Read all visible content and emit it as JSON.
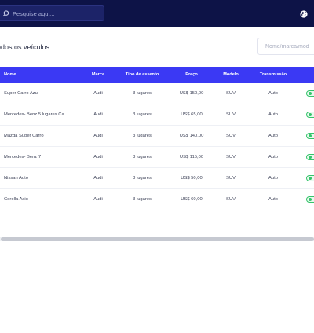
{
  "header": {
    "search_placeholder": "Pesquise aqui...",
    "search_icon": "search-icon",
    "globe_icon": "globe-icon"
  },
  "page": {
    "title": "odos os veículos",
    "filter_placeholder": "Nome/marca/mod"
  },
  "table": {
    "columns": [
      "Nome",
      "Marca",
      "Tipo de assento",
      "Preço",
      "Modelo",
      "Transmissão"
    ],
    "rows": [
      {
        "nome": "Super Carro Azul",
        "marca": "Audi",
        "assento": "3 lugares",
        "preco": "US$ 150,00",
        "modelo": "SUV",
        "transmissao": "Auto"
      },
      {
        "nome": "Mercedes- Benz 5 lugares Ca",
        "marca": "Audi",
        "assento": "3 lugares",
        "preco": "US$ 65,00",
        "modelo": "SUV",
        "transmissao": "Auto"
      },
      {
        "nome": "Mazda Super Carro",
        "marca": "Audi",
        "assento": "3 lugares",
        "preco": "US$ 140,00",
        "modelo": "SUV",
        "transmissao": "Auto"
      },
      {
        "nome": "Mercedes- Benz 7",
        "marca": "Audi",
        "assento": "3 lugares",
        "preco": "US$ 115,00",
        "modelo": "SUV",
        "transmissao": "Auto"
      },
      {
        "nome": "Nissan Auto",
        "marca": "Audi",
        "assento": "3 lugares",
        "preco": "US$ 50,00",
        "modelo": "SUV",
        "transmissao": "Auto"
      },
      {
        "nome": "Corolla Axio",
        "marca": "Audi",
        "assento": "3 lugares",
        "preco": "US$ 60,00",
        "modelo": "SUV",
        "transmissao": "Auto"
      }
    ]
  },
  "colors": {
    "topbar": "#0d1347",
    "table_header": "#3b39f4",
    "status_active": "#35c46a"
  }
}
